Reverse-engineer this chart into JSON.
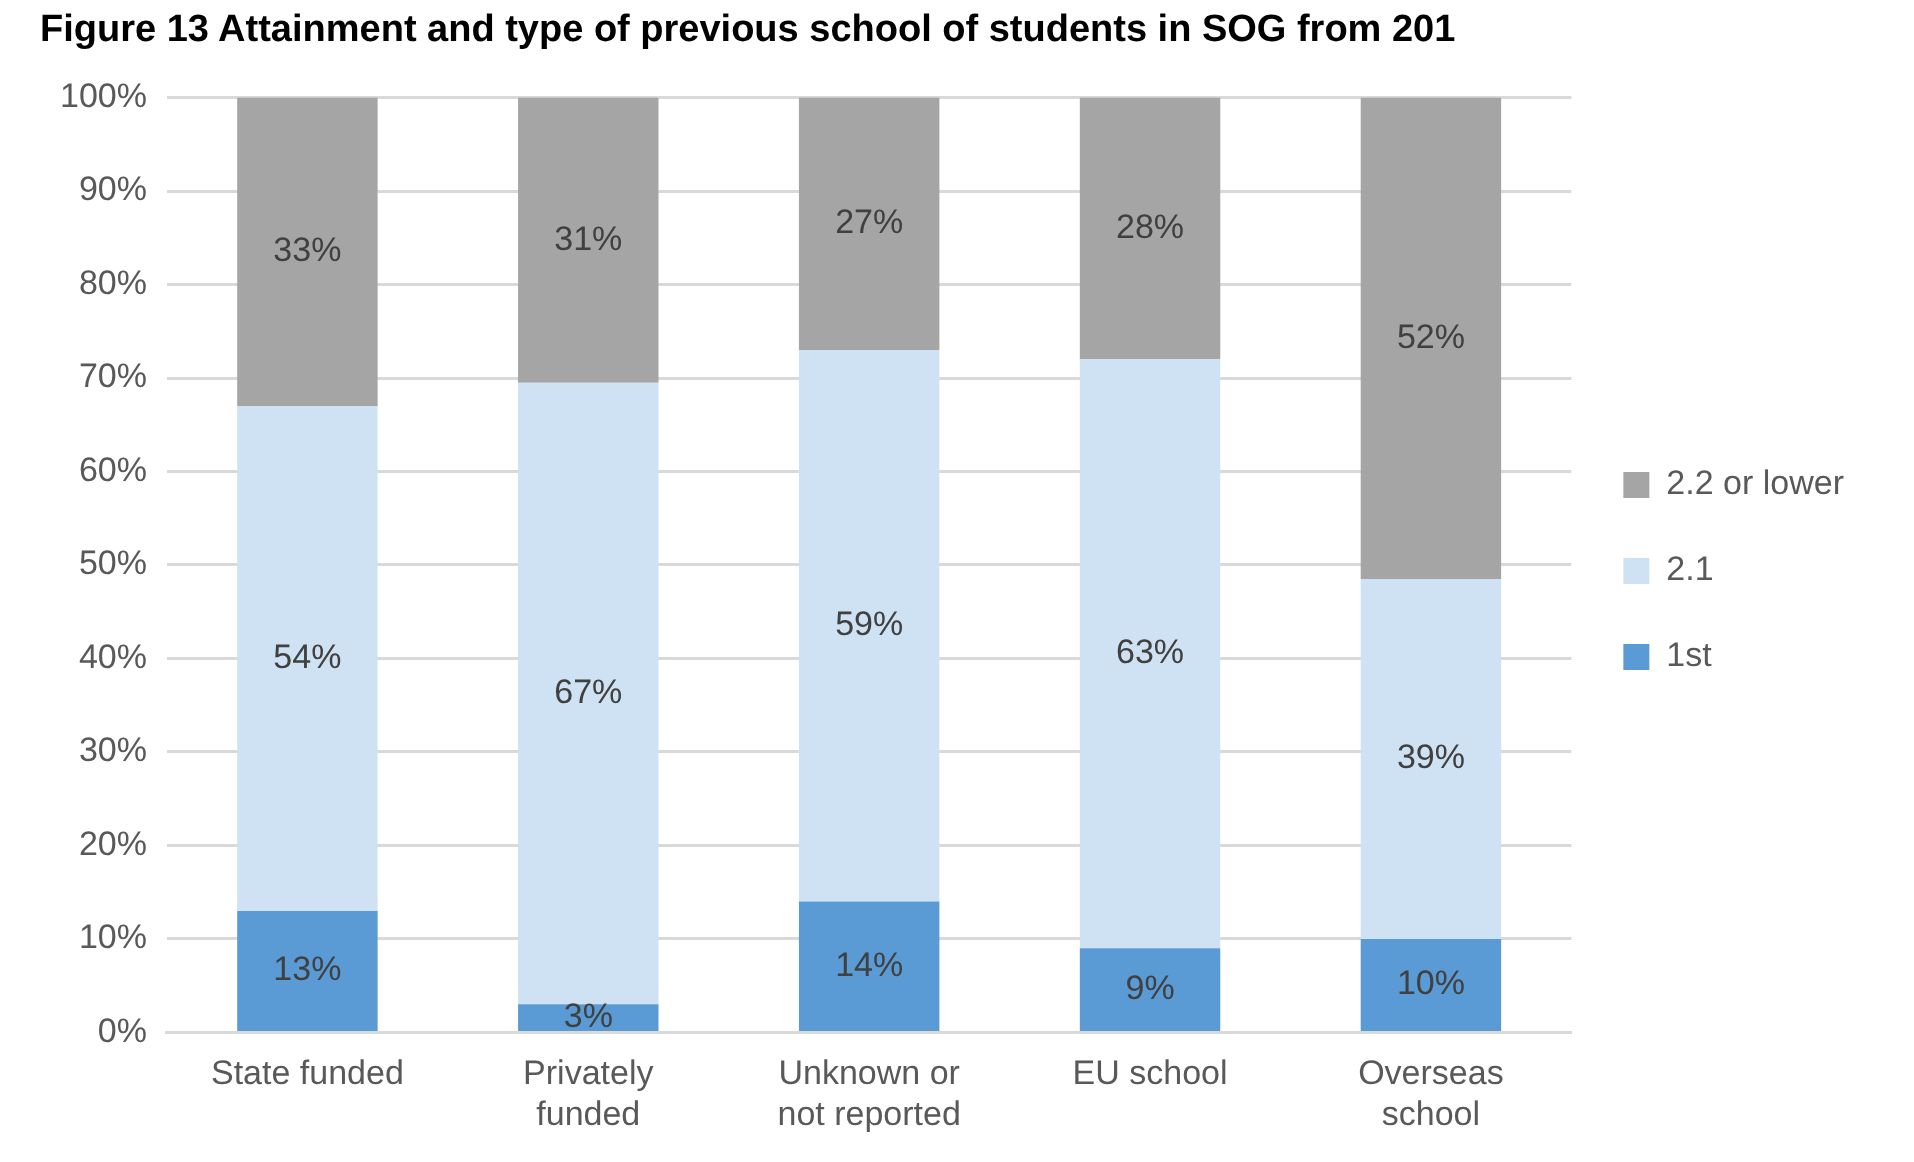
{
  "chart_data": {
    "type": "bar",
    "title": "Figure 13 Attainment and type of previous school of students in SOG from 201",
    "stacked": true,
    "categories": [
      "State funded",
      "Privately funded",
      "Unknown or not reported",
      "EU school",
      "Overseas school"
    ],
    "series": [
      {
        "name": "1st",
        "color": "#5b9bd5",
        "values": [
          13,
          3,
          14,
          9,
          10
        ],
        "value_labels": [
          "13%",
          "3%",
          "14%",
          "9%",
          "10%"
        ]
      },
      {
        "name": "2.1",
        "color": "#cfe2f3",
        "values": [
          54,
          66.5,
          59,
          63,
          38.5
        ],
        "value_labels": [
          "54%",
          "67%",
          "59%",
          "63%",
          "39%"
        ]
      },
      {
        "name": "2.2 or lower",
        "color": "#a5a5a5",
        "values": [
          33,
          30.5,
          27,
          28,
          51.5
        ],
        "value_labels": [
          "33%",
          "31%",
          "27%",
          "28%",
          "52%"
        ]
      }
    ],
    "ylim": [
      0,
      100
    ],
    "yticks": [
      {
        "value": 0,
        "label": "0%"
      },
      {
        "value": 10,
        "label": "10%"
      },
      {
        "value": 20,
        "label": "20%"
      },
      {
        "value": 30,
        "label": "30%"
      },
      {
        "value": 40,
        "label": "40%"
      },
      {
        "value": 50,
        "label": "50%"
      },
      {
        "value": 60,
        "label": "60%"
      },
      {
        "value": 70,
        "label": "70%"
      },
      {
        "value": 80,
        "label": "80%"
      },
      {
        "value": 90,
        "label": "90%"
      },
      {
        "value": 100,
        "label": "100%"
      }
    ],
    "grid": "y",
    "legend": "right"
  }
}
